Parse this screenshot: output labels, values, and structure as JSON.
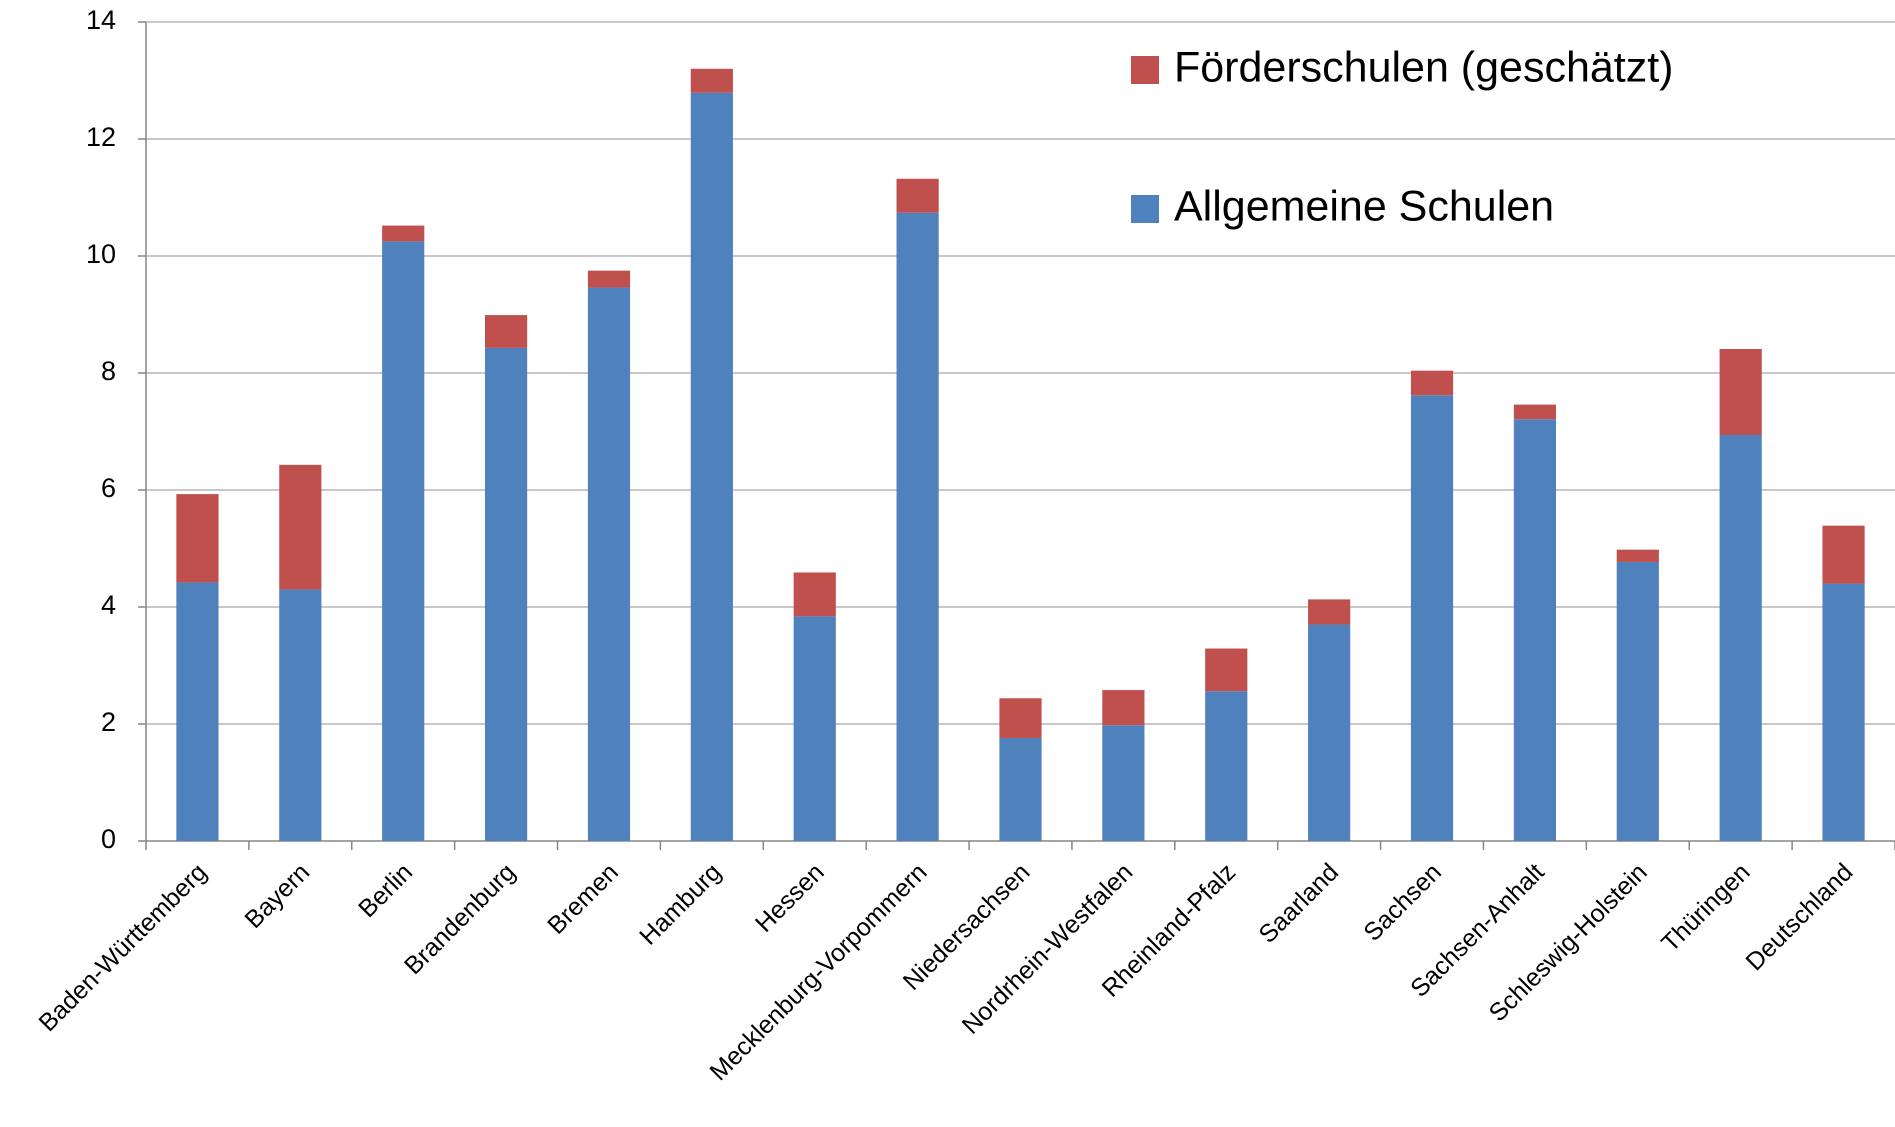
{
  "chart_data": {
    "type": "stacked_bar",
    "categories": [
      "Baden-Württemberg",
      "Bayern",
      "Berlin",
      "Brandenburg",
      "Bremen",
      "Hamburg",
      "Hessen",
      "Mecklenburg-Vorpommern",
      "Niedersachsen",
      "Nordrhein-Westfalen",
      "Rheinland-Pfalz",
      "Saarland",
      "Sachsen",
      "Sachsen-Anhalt",
      "Schleswig-Holstein",
      "Thüringen",
      "Deutschland"
    ],
    "series": [
      {
        "name": "Allgemeine Schulen",
        "color": "#4f81bd",
        "values": [
          4.42,
          4.3,
          10.25,
          8.43,
          9.46,
          12.79,
          3.84,
          10.74,
          1.76,
          1.98,
          2.56,
          3.7,
          7.62,
          7.21,
          4.77,
          6.94,
          4.4
        ]
      },
      {
        "name": "Förderschulen (geschätzt)",
        "color": "#c0504d",
        "values": [
          1.51,
          2.13,
          0.27,
          0.56,
          0.29,
          0.41,
          0.75,
          0.58,
          0.68,
          0.6,
          0.73,
          0.43,
          0.42,
          0.25,
          0.21,
          1.47,
          0.99
        ]
      }
    ],
    "ylim": [
      0,
      14
    ],
    "yticks": [
      0,
      2,
      4,
      6,
      8,
      10,
      12,
      14
    ],
    "grid": true
  }
}
